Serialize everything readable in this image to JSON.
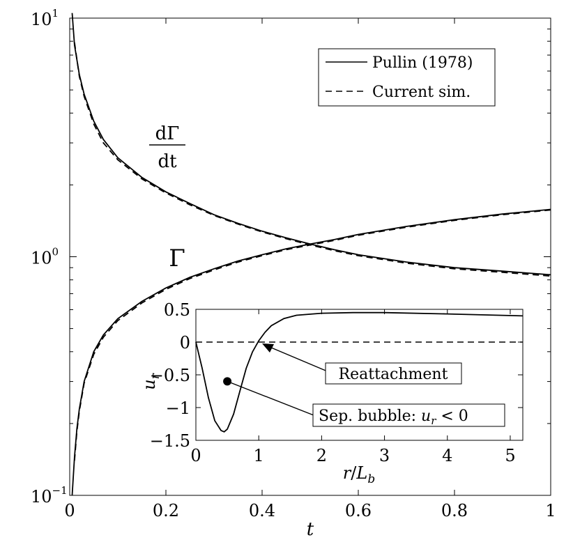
{
  "chart_data": [
    {
      "type": "line",
      "xlabel": "t",
      "xlim": [
        0,
        1
      ],
      "ylim": [
        0.1,
        10
      ],
      "yscale": "log",
      "xticks": [
        0,
        0.2,
        0.4,
        0.6,
        0.8,
        1
      ],
      "xtick_labels": [
        "0",
        "0.2",
        "0.4",
        "0.6",
        "0.8",
        "1"
      ],
      "yticks": [
        {
          "base": "10",
          "exp": "−1",
          "value": 0.1
        },
        {
          "base": "10",
          "exp": "0",
          "value": 1
        },
        {
          "base": "10",
          "exp": "1",
          "value": 10
        }
      ],
      "legend": {
        "position": "top-right",
        "entries": [
          {
            "label": "Pullin (1978)",
            "style": "solid"
          },
          {
            "label": "Current sim.",
            "style": "dashed"
          }
        ]
      },
      "curve_labels": {
        "dgamma_num": "dΓ",
        "dgamma_den": "dt",
        "gamma": "Γ"
      },
      "series": [
        {
          "name": "Pullin (1978)",
          "curve": "dΓ/dt",
          "style": "solid",
          "x": [
            0.005,
            0.01,
            0.02,
            0.03,
            0.05,
            0.07,
            0.1,
            0.15,
            0.2,
            0.25,
            0.3,
            0.35,
            0.4,
            0.45,
            0.5,
            0.55,
            0.6,
            0.7,
            0.8,
            0.9,
            1.0
          ],
          "y": [
            10.5,
            7.7,
            5.8,
            4.8,
            3.7,
            3.1,
            2.6,
            2.15,
            1.87,
            1.67,
            1.5,
            1.38,
            1.28,
            1.2,
            1.13,
            1.07,
            1.02,
            0.95,
            0.9,
            0.87,
            0.84
          ]
        },
        {
          "name": "Current sim.",
          "curve": "dΓ/dt",
          "style": "dashed",
          "x": [
            0.01,
            0.02,
            0.03,
            0.05,
            0.07,
            0.1,
            0.15,
            0.2,
            0.25,
            0.3,
            0.35,
            0.4,
            0.45,
            0.5,
            0.55,
            0.6,
            0.7,
            0.8,
            0.9,
            1.0
          ],
          "y": [
            7.9,
            5.7,
            4.7,
            3.6,
            3.0,
            2.55,
            2.12,
            1.85,
            1.65,
            1.49,
            1.37,
            1.27,
            1.19,
            1.12,
            1.06,
            1.01,
            0.94,
            0.89,
            0.86,
            0.83
          ]
        },
        {
          "name": "Pullin (1978)",
          "curve": "Γ",
          "style": "solid",
          "x": [
            0.005,
            0.01,
            0.015,
            0.02,
            0.03,
            0.05,
            0.07,
            0.1,
            0.15,
            0.2,
            0.25,
            0.3,
            0.35,
            0.4,
            0.45,
            0.5,
            0.55,
            0.6,
            0.7,
            0.8,
            0.9,
            1.0
          ],
          "y": [
            0.1,
            0.145,
            0.19,
            0.23,
            0.3,
            0.4,
            0.47,
            0.55,
            0.65,
            0.74,
            0.82,
            0.89,
            0.96,
            1.02,
            1.08,
            1.13,
            1.18,
            1.24,
            1.34,
            1.43,
            1.51,
            1.58
          ]
        },
        {
          "name": "Current sim.",
          "curve": "Γ",
          "style": "dashed",
          "x": [
            0.01,
            0.015,
            0.02,
            0.03,
            0.05,
            0.07,
            0.1,
            0.15,
            0.2,
            0.25,
            0.3,
            0.35,
            0.4,
            0.45,
            0.5,
            0.55,
            0.6,
            0.7,
            0.8,
            0.9,
            1.0
          ],
          "y": [
            0.14,
            0.185,
            0.225,
            0.295,
            0.39,
            0.46,
            0.54,
            0.64,
            0.73,
            0.81,
            0.88,
            0.95,
            1.01,
            1.07,
            1.12,
            1.17,
            1.23,
            1.33,
            1.42,
            1.5,
            1.57
          ]
        }
      ]
    },
    {
      "type": "line",
      "xlabel_base": "r",
      "xlabel_sep": "/",
      "xlabel_L": "L",
      "xlabel_sub": "b",
      "ylabel_base": "u",
      "ylabel_sub": "r",
      "xlim": [
        0,
        5.2
      ],
      "ylim": [
        -1.5,
        0.5
      ],
      "xticks": [
        0,
        1,
        2,
        3,
        4,
        5
      ],
      "xtick_labels": [
        "0",
        "1",
        "2",
        "3",
        "4",
        "5"
      ],
      "yticks": [
        -1.5,
        -1,
        -0.5,
        0,
        0.5
      ],
      "ytick_labels": [
        "−1.5",
        "−1",
        "−0.5",
        "0",
        "0.5"
      ],
      "zero_line": {
        "y": 0,
        "style": "dashed"
      },
      "series": [
        {
          "style": "solid",
          "x": [
            0,
            0.1,
            0.2,
            0.3,
            0.4,
            0.45,
            0.5,
            0.6,
            0.7,
            0.8,
            0.9,
            1.0,
            1.1,
            1.2,
            1.4,
            1.6,
            2.0,
            2.5,
            3.0,
            4.0,
            5.2
          ],
          "y": [
            0,
            -0.4,
            -0.85,
            -1.2,
            -1.35,
            -1.37,
            -1.33,
            -1.1,
            -0.75,
            -0.4,
            -0.15,
            0.02,
            0.15,
            0.25,
            0.36,
            0.41,
            0.44,
            0.45,
            0.45,
            0.43,
            0.4
          ]
        }
      ],
      "marker": {
        "x": 0.5,
        "y": -0.6
      },
      "annotations": {
        "reattachment": {
          "text": "Reattachment",
          "x": 1.0,
          "y": 0
        },
        "bubble": {
          "prefix": "Sep. bubble: ",
          "var": "u",
          "sub": "r",
          "rel": " < 0"
        }
      }
    }
  ]
}
